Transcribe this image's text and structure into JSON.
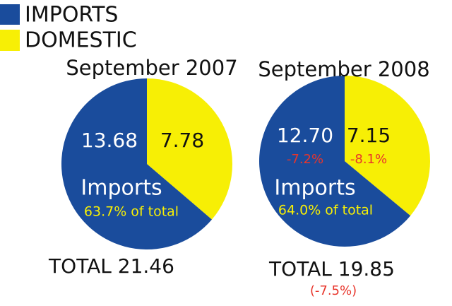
{
  "legend": [
    {
      "name": "IMPORTS",
      "color": "#1a4c9c"
    },
    {
      "name": "DOMESTIC",
      "color": "#f7ef05"
    }
  ],
  "chart_data": [
    {
      "type": "pie",
      "title": "September 2007",
      "values": [
        13.68,
        7.78
      ],
      "value_labels": [
        "13.68",
        "7.78"
      ],
      "slice_label": "Imports",
      "share_label": "63.7% of total",
      "total_label": "TOTAL 21.46"
    },
    {
      "type": "pie",
      "title": "September 2008",
      "values": [
        12.7,
        7.15
      ],
      "value_labels": [
        "12.70",
        "7.15"
      ],
      "change_labels": [
        "-7.2%",
        "-8.1%"
      ],
      "slice_label": "Imports",
      "share_label": "64.0% of total",
      "total_label": "TOTAL 19.85",
      "total_change_label": "(-7.5%)"
    }
  ]
}
